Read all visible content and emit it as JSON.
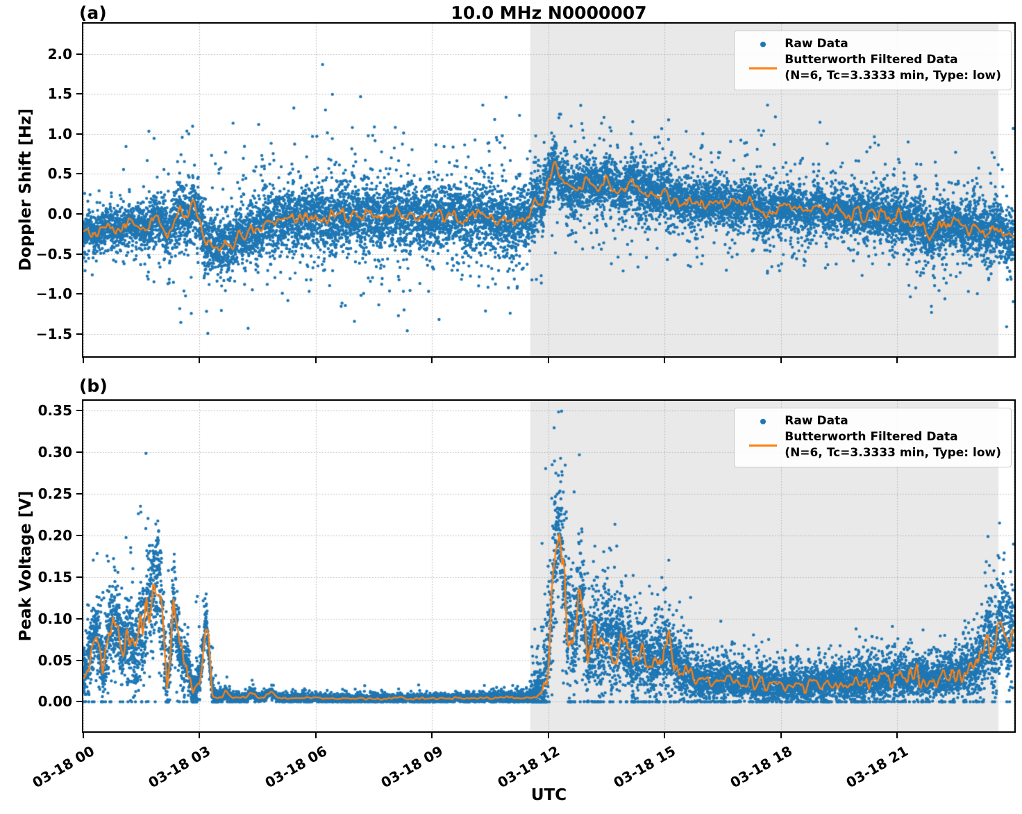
{
  "figure": {
    "title": "10.0 MHz N0000007",
    "xlabel": "UTC"
  },
  "colors": {
    "raw": "#1f77b4",
    "filtered": "#ff7f0e",
    "shade": "#e9e9e9",
    "grid": "#b0b0b0",
    "spine": "#000000"
  },
  "legend": {
    "raw_label": "Raw Data",
    "filtered_label_line1": "Butterworth Filtered Data",
    "filtered_label_line2": "(N=6, Tc=3.3333 min, Type: low)"
  },
  "x_axis": {
    "xlim_h": [
      0,
      24.02
    ],
    "tick_hours": [
      0,
      3,
      6,
      9,
      12,
      15,
      18,
      21
    ],
    "tick_labels": [
      "03-18 00",
      "03-18 03",
      "03-18 06",
      "03-18 09",
      "03-18 12",
      "03-18 15",
      "03-18 18",
      "03-18 21"
    ],
    "grid_hours": [
      0,
      3,
      6,
      9,
      12,
      15,
      18,
      21,
      24
    ],
    "xlabel": "UTC"
  },
  "shade": {
    "start_h": 11.53,
    "end_h": 23.61
  },
  "chart_data": [
    {
      "panel": "a",
      "panel_label": "(a)",
      "type": "scatter",
      "ylabel": "Doppler Shift [Hz]",
      "ylim": [
        -1.78,
        2.38
      ],
      "ytick_values": [
        2.0,
        1.5,
        1.0,
        0.5,
        0.0,
        -0.5,
        -1.0,
        -1.5
      ],
      "ytick_labels": [
        "2.0",
        "1.5",
        "1.0",
        "0.5",
        "0.0",
        "−0.5",
        "−1.0",
        "−1.5"
      ],
      "series": [
        {
          "name": "Raw Data",
          "kind": "scatter"
        },
        {
          "name": "Butterworth Filtered Data (N=6, Tc=3.3333 min, Type: low)",
          "kind": "line",
          "step_min": 10,
          "wiggle_amp": 0.055,
          "values": [
            -0.22,
            -0.2,
            -0.26,
            -0.18,
            -0.15,
            -0.2,
            -0.18,
            -0.12,
            -0.16,
            -0.15,
            -0.22,
            -0.02,
            -0.1,
            -0.28,
            -0.14,
            0.08,
            -0.1,
            0.13,
            -0.05,
            -0.4,
            -0.35,
            -0.44,
            -0.36,
            -0.42,
            -0.23,
            -0.3,
            -0.14,
            -0.25,
            -0.08,
            -0.16,
            -0.04,
            -0.1,
            -0.02,
            -0.08,
            0.0,
            -0.06,
            -0.02,
            -0.08,
            0.0,
            -0.05,
            0.02,
            -0.04,
            0.0,
            -0.07,
            0.02,
            -0.03,
            -0.1,
            0.0,
            -0.04,
            0.02,
            -0.06,
            0.0,
            -0.08,
            -0.02,
            -0.06,
            0.0,
            -0.05,
            0.02,
            -0.04,
            -0.1,
            -0.03,
            0.01,
            -0.06,
            -0.02,
            -0.12,
            -0.05,
            -0.14,
            -0.08,
            -0.04,
            -0.05,
            0.18,
            0.1,
            0.45,
            0.6,
            0.42,
            0.35,
            0.28,
            0.32,
            0.5,
            0.35,
            0.3,
            0.48,
            0.3,
            0.28,
            0.25,
            0.5,
            0.25,
            0.3,
            0.2,
            0.26,
            0.3,
            0.16,
            0.2,
            0.12,
            0.18,
            0.14,
            0.15,
            0.12,
            0.18,
            0.14,
            0.1,
            0.15,
            0.11,
            0.2,
            0.08,
            0.05,
            -0.05,
            0.08,
            0.07,
            0.13,
            0.04,
            0.1,
            0.0,
            0.09,
            0.11,
            0.0,
            0.05,
            0.08,
            -0.05,
            0.02,
            0.05,
            -0.08,
            0.02,
            -0.02,
            0.04,
            -0.12,
            -0.02,
            -0.08,
            -0.15,
            -0.08,
            -0.15,
            -0.35,
            -0.2,
            -0.1,
            -0.18,
            -0.08,
            -0.15,
            -0.18,
            -0.12,
            -0.22,
            -0.28,
            -0.16,
            -0.2,
            -0.28,
            -0.3
          ]
        }
      ],
      "scatter_profile": {
        "n_points": 13000,
        "step_min": 30,
        "outlier_frac": 0.035,
        "up_prob": 0.55,
        "seed": 42,
        "sigma": [
          0.1,
          0.1,
          0.11,
          0.12,
          0.15,
          0.18,
          0.17,
          0.15,
          0.16,
          0.17,
          0.18,
          0.18,
          0.19,
          0.2,
          0.2,
          0.2,
          0.2,
          0.2,
          0.2,
          0.2,
          0.2,
          0.2,
          0.19,
          0.17,
          0.15,
          0.16,
          0.16,
          0.15,
          0.15,
          0.15,
          0.15,
          0.14,
          0.14,
          0.14,
          0.14,
          0.15,
          0.14,
          0.14,
          0.13,
          0.13,
          0.14,
          0.14,
          0.15,
          0.17,
          0.16,
          0.15,
          0.16,
          0.17,
          0.17
        ],
        "hi": [
          0.3,
          0.5,
          1.0,
          1.85,
          1.9,
          1.6,
          1.2,
          1.0,
          1.3,
          1.4,
          1.5,
          1.7,
          2.07,
          1.8,
          1.6,
          1.75,
          1.5,
          1.55,
          1.4,
          1.5,
          1.55,
          1.3,
          1.65,
          1.4,
          1.5,
          1.2,
          1.35,
          1.1,
          1.2,
          1.45,
          1.1,
          1.3,
          1.0,
          1.2,
          1.1,
          1.5,
          1.45,
          1.0,
          0.9,
          0.9,
          1.0,
          1.05,
          0.9,
          1.0,
          0.9,
          0.85,
          1.0,
          1.25,
          1.1
        ],
        "lo": [
          -0.6,
          -0.6,
          -0.7,
          -0.9,
          -1.0,
          -1.55,
          -1.5,
          -1.1,
          -1.0,
          -1.15,
          -1.2,
          -1.0,
          -1.1,
          -1.3,
          -1.2,
          -1.1,
          -1.25,
          -1.55,
          -1.2,
          -1.05,
          -1.1,
          -1.35,
          -1.0,
          -0.9,
          -0.7,
          -0.75,
          -0.8,
          -0.7,
          -0.75,
          -0.7,
          -0.75,
          -0.8,
          -0.7,
          -0.75,
          -0.7,
          -0.8,
          -0.75,
          -0.7,
          -0.65,
          -0.7,
          -0.75,
          -0.7,
          -0.8,
          -1.3,
          -0.9,
          -0.8,
          -0.95,
          -0.9,
          -0.85
        ]
      }
    },
    {
      "panel": "b",
      "panel_label": "(b)",
      "type": "scatter",
      "ylabel": "Peak Voltage [V]",
      "ylim": [
        -0.0356,
        0.362
      ],
      "clamp_min": 0,
      "ytick_values": [
        0.35,
        0.3,
        0.25,
        0.2,
        0.15,
        0.1,
        0.05,
        0.0
      ],
      "ytick_labels": [
        "0.35",
        "0.30",
        "0.25",
        "0.20",
        "0.15",
        "0.10",
        "0.05",
        "0.00"
      ],
      "series": [
        {
          "name": "Raw Data",
          "kind": "scatter"
        },
        {
          "name": "Butterworth Filtered Data (N=6, Tc=3.3333 min, Type: low)",
          "kind": "line",
          "step_min": 10,
          "wiggle_frac": 0.25,
          "wiggle_min": 0.0012,
          "wiggle_max": 0.02,
          "values": [
            0.03,
            0.055,
            0.09,
            0.035,
            0.08,
            0.1,
            0.06,
            0.075,
            0.055,
            0.08,
            0.11,
            0.145,
            0.13,
            0.01,
            0.12,
            0.05,
            0.048,
            0.01,
            0.025,
            0.1,
            0.006,
            0.005,
            0.012,
            0.005,
            0.006,
            0.005,
            0.01,
            0.005,
            0.006,
            0.012,
            0.005,
            0.004,
            0.005,
            0.004,
            0.005,
            0.004,
            0.005,
            0.004,
            0.004,
            0.004,
            0.004,
            0.004,
            0.004,
            0.004,
            0.004,
            0.004,
            0.004,
            0.004,
            0.004,
            0.004,
            0.004,
            0.004,
            0.004,
            0.004,
            0.004,
            0.004,
            0.004,
            0.004,
            0.005,
            0.004,
            0.004,
            0.004,
            0.005,
            0.004,
            0.005,
            0.006,
            0.005,
            0.004,
            0.005,
            0.006,
            0.01,
            0.008,
            0.06,
            0.19,
            0.2,
            0.09,
            0.07,
            0.135,
            0.05,
            0.08,
            0.06,
            0.095,
            0.055,
            0.075,
            0.065,
            0.045,
            0.06,
            0.055,
            0.04,
            0.055,
            0.06,
            0.055,
            0.04,
            0.035,
            0.03,
            0.025,
            0.025,
            0.022,
            0.028,
            0.025,
            0.03,
            0.02,
            0.022,
            0.028,
            0.02,
            0.025,
            0.018,
            0.022,
            0.02,
            0.015,
            0.022,
            0.018,
            0.02,
            0.025,
            0.02,
            0.022,
            0.028,
            0.025,
            0.02,
            0.022,
            0.02,
            0.025,
            0.03,
            0.025,
            0.028,
            0.03,
            0.032,
            0.028,
            0.03,
            0.032,
            0.028,
            0.025,
            0.028,
            0.03,
            0.032,
            0.03,
            0.035,
            0.038,
            0.04,
            0.05,
            0.08,
            0.06,
            0.1,
            0.08,
            0.09
          ]
        }
      ],
      "scatter_profile": {
        "n_points": 13000,
        "step_min": 30,
        "outlier_frac": 0.04,
        "up_prob": 0.93,
        "seed": 1337,
        "sigma": [
          0.016,
          0.02,
          0.022,
          0.028,
          0.03,
          0.014,
          0.01,
          0.003,
          0.0025,
          0.0025,
          0.002,
          0.002,
          0.002,
          0.002,
          0.002,
          0.002,
          0.002,
          0.002,
          0.002,
          0.002,
          0.002,
          0.0025,
          0.0025,
          0.003,
          0.03,
          0.035,
          0.028,
          0.025,
          0.022,
          0.02,
          0.02,
          0.016,
          0.012,
          0.012,
          0.01,
          0.01,
          0.009,
          0.01,
          0.01,
          0.011,
          0.011,
          0.012,
          0.012,
          0.011,
          0.011,
          0.012,
          0.016,
          0.028,
          0.026
        ],
        "hi": [
          0.09,
          0.16,
          0.19,
          0.24,
          0.28,
          0.12,
          0.165,
          0.02,
          0.018,
          0.016,
          0.012,
          0.012,
          0.012,
          0.01,
          0.01,
          0.012,
          0.01,
          0.01,
          0.01,
          0.012,
          0.012,
          0.015,
          0.015,
          0.02,
          0.345,
          0.3,
          0.2,
          0.21,
          0.13,
          0.13,
          0.14,
          0.09,
          0.07,
          0.08,
          0.065,
          0.06,
          0.055,
          0.06,
          0.065,
          0.07,
          0.065,
          0.08,
          0.075,
          0.07,
          0.065,
          0.08,
          0.12,
          0.19,
          0.18
        ],
        "lo": [
          0,
          0,
          0,
          0,
          0,
          0,
          0,
          0,
          0,
          0,
          0,
          0,
          0,
          0,
          0,
          0,
          0,
          0,
          0,
          0,
          0,
          0,
          0,
          0,
          0,
          0,
          0,
          0,
          0,
          0,
          0,
          0,
          0,
          0,
          0,
          0,
          0,
          0,
          0,
          0,
          0,
          0,
          0,
          0,
          0,
          0,
          0,
          0,
          0
        ]
      }
    }
  ]
}
